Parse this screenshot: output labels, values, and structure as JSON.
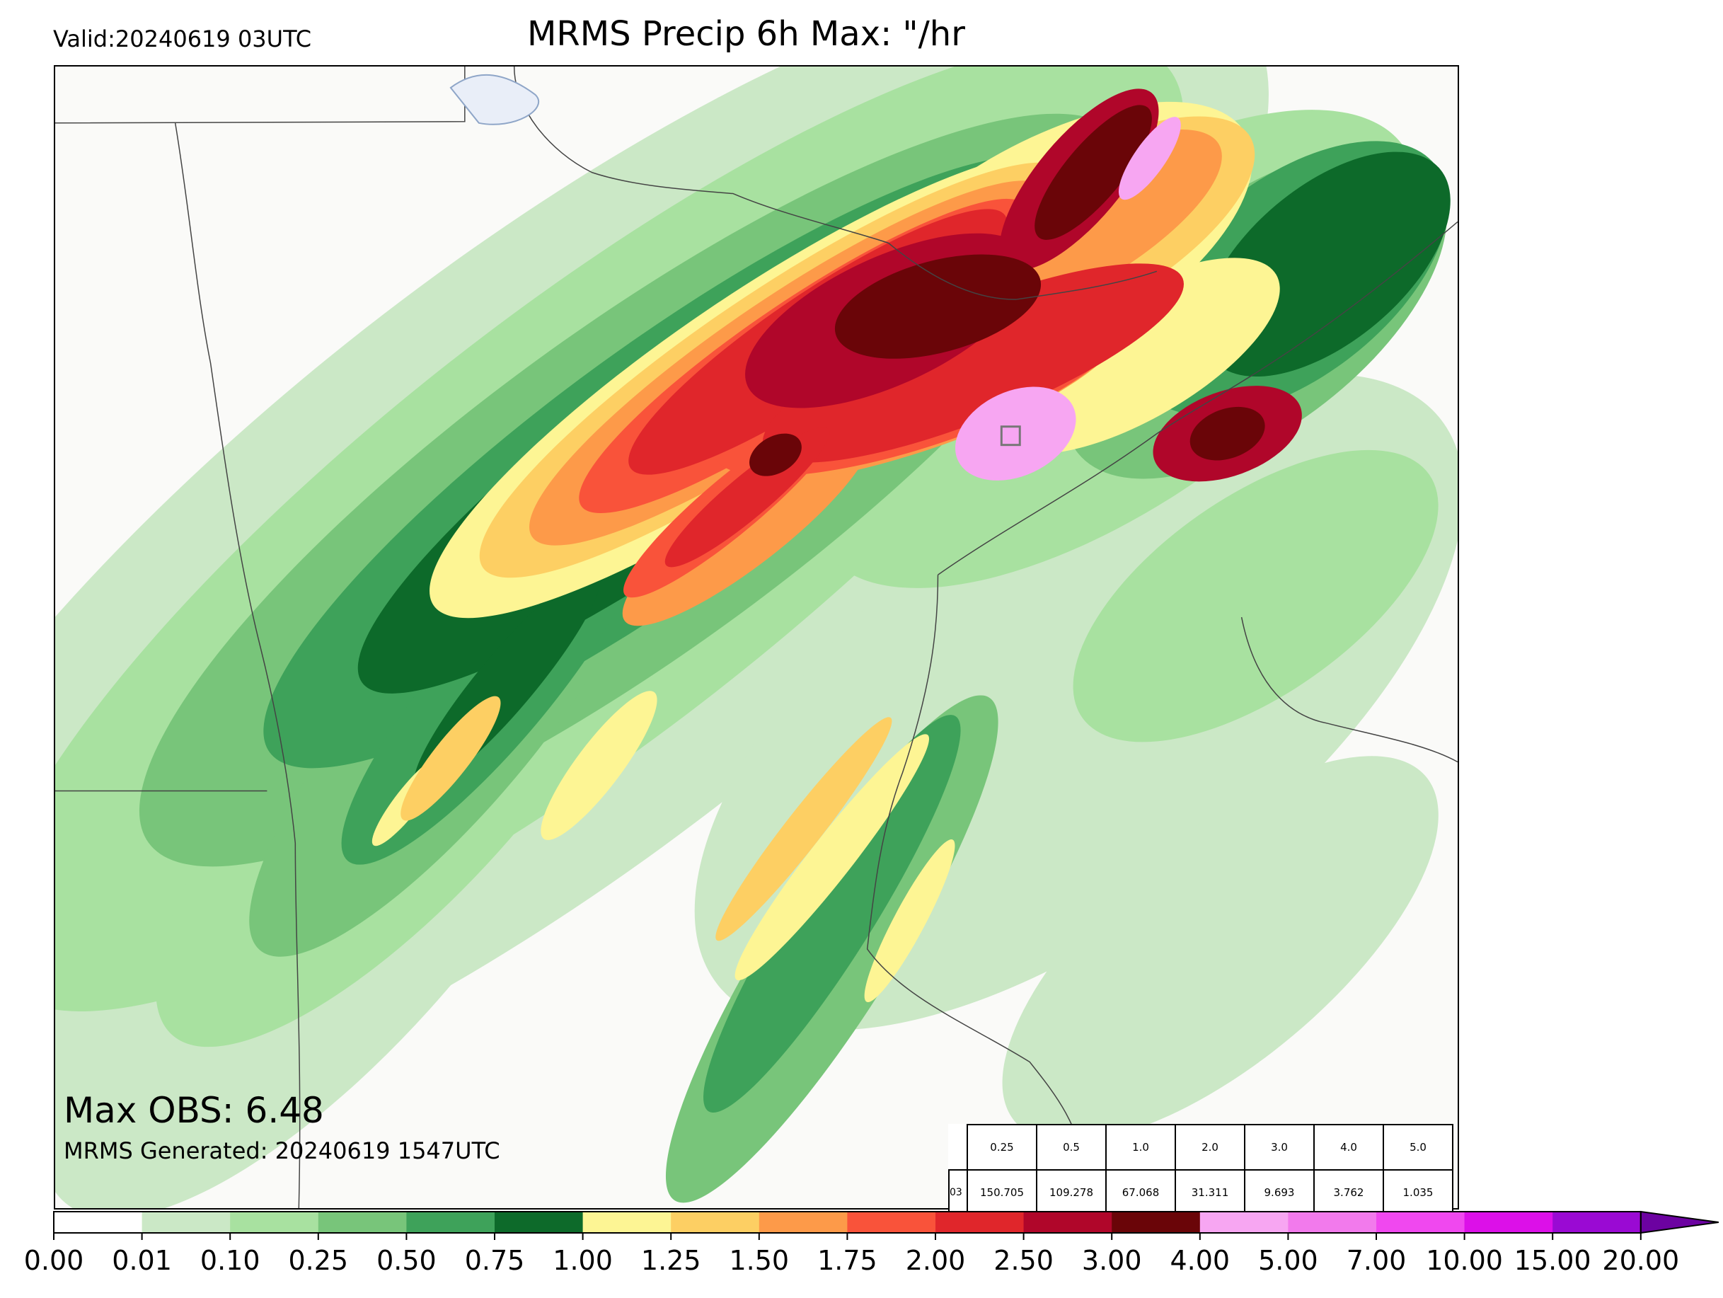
{
  "header": {
    "valid": "Valid:20240619 03UTC",
    "title": "MRMS Precip 6h Max: \"/hr"
  },
  "annotations": {
    "max_obs": "Max OBS: 6.48",
    "generated": "MRMS Generated: 20240619 1547UTC"
  },
  "stats_table": {
    "row_label": "03",
    "thresholds": [
      "0.25",
      "0.5",
      "1.0",
      "2.0",
      "3.0",
      "4.0",
      "5.0"
    ],
    "values": [
      "150.705",
      "109.278",
      "67.068",
      "31.311",
      "9.693",
      "3.762",
      "1.035"
    ]
  },
  "colorbar": {
    "ticks": [
      "0.00",
      "0.01",
      "0.10",
      "0.25",
      "0.50",
      "0.75",
      "1.00",
      "1.25",
      "1.50",
      "1.75",
      "2.00",
      "2.50",
      "3.00",
      "4.00",
      "5.00",
      "7.00",
      "10.00",
      "15.00",
      "20.00"
    ],
    "colors": [
      "#ffffff",
      "#cbe8c6",
      "#a8e1a0",
      "#78c57a",
      "#3ea25a",
      "#0d6a2a",
      "#fdf594",
      "#fdcf63",
      "#fd9a49",
      "#f9533a",
      "#e0262b",
      "#b0062a",
      "#6a0508",
      "#f7a6f2",
      "#f27aec",
      "#f048ef",
      "#dc10e8",
      "#9a0ad3"
    ],
    "extend_color": "#6c02a1"
  },
  "map": {
    "precip_colors": {
      "trace": "#cbe8c6",
      "light": "#a8e1a0",
      "moderate": "#78c57a",
      "medium": "#3ea25a",
      "dark_green": "#0d6a2a",
      "yellow": "#fdf594",
      "gold": "#fdcf63",
      "orange": "#fd9a49",
      "red_orange": "#f9533a",
      "red": "#e0262b",
      "crimson": "#b0062a",
      "maroon": "#6a0508",
      "pink": "#f7a6f2"
    },
    "border_color": "#444444",
    "lake_color": "#8fa6c8"
  }
}
